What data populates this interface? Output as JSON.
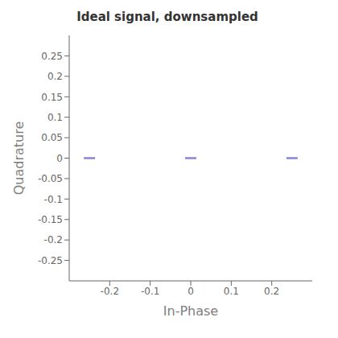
{
  "chart_data": {
    "type": "scatter",
    "title": "Ideal signal, downsampled",
    "xlabel": "In-Phase",
    "ylabel": "Quadrature",
    "x": [
      -0.25,
      0.0,
      0.25
    ],
    "values": [
      0.0,
      0.0,
      0.0
    ],
    "marker": "dash",
    "xlim": [
      -0.3,
      0.3
    ],
    "ylim": [
      -0.3,
      0.3
    ],
    "xticks": [
      -0.2,
      -0.1,
      0.0,
      0.1,
      0.2
    ],
    "yticks": [
      -0.25,
      -0.2,
      -0.15,
      -0.1,
      -0.05,
      0.0,
      0.05,
      0.1,
      0.15,
      0.2,
      0.25
    ],
    "grid": false
  }
}
